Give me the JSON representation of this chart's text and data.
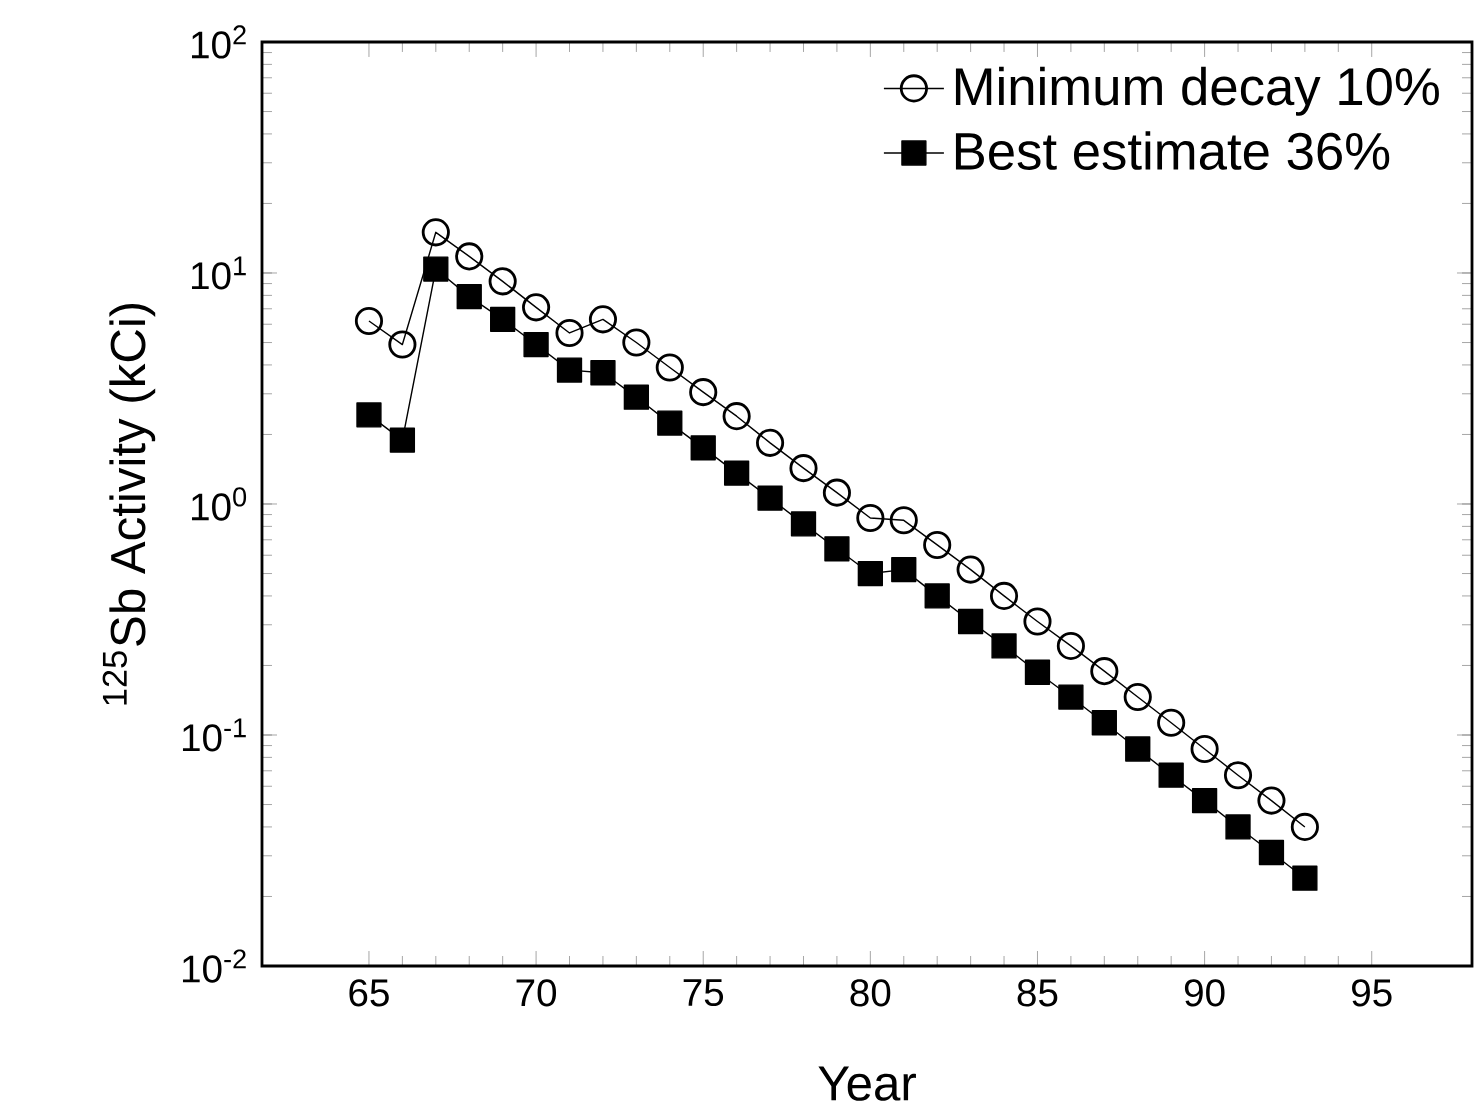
{
  "chart_data": {
    "type": "line",
    "xlabel": "Year",
    "ylabel": "$^{125}$Sb Activity (kCi)",
    "log": "y",
    "legend": "top right",
    "grid": false,
    "xlim": [
      61.8,
      98
    ],
    "xticks": [
      65,
      70,
      75,
      80,
      85,
      90,
      95
    ],
    "ylim": [
      0.01,
      100
    ],
    "yticks": [
      {
        "value": 0.01,
        "label": "10$^{-2}$"
      },
      {
        "value": 0.1,
        "label": "10$^{-1}$"
      },
      {
        "value": 1,
        "label": "10$^{0}$"
      },
      {
        "value": 10,
        "label": "10$^{1}$"
      },
      {
        "value": 100,
        "label": "10$^{2}$"
      }
    ],
    "x": [
      65,
      66,
      67,
      68,
      69,
      70,
      71,
      72,
      73,
      74,
      75,
      76,
      77,
      78,
      79,
      80,
      81,
      82,
      83,
      84,
      85,
      86,
      87,
      88,
      89,
      90,
      91,
      92,
      93
    ],
    "series": [
      {
        "name": "Minimum decay 10%",
        "color": "#000000",
        "marker": "circle",
        "values": [
          6.2,
          4.9,
          15.0,
          11.8,
          9.2,
          7.1,
          5.5,
          6.3,
          5.0,
          3.9,
          3.05,
          2.4,
          1.84,
          1.43,
          1.12,
          0.87,
          0.85,
          0.665,
          0.52,
          0.4,
          0.31,
          0.243,
          0.189,
          0.146,
          0.113,
          0.087,
          0.067,
          0.052,
          0.04
        ]
      },
      {
        "name": "Best estimate 36%",
        "color": "#000000",
        "marker": "square",
        "values": [
          2.43,
          1.89,
          10.4,
          7.9,
          6.3,
          4.9,
          3.8,
          3.7,
          2.9,
          2.24,
          1.75,
          1.36,
          1.06,
          0.82,
          0.64,
          0.5,
          0.52,
          0.4,
          0.31,
          0.243,
          0.187,
          0.146,
          0.113,
          0.087,
          0.067,
          0.052,
          0.04,
          0.031,
          0.024
        ]
      }
    ]
  }
}
